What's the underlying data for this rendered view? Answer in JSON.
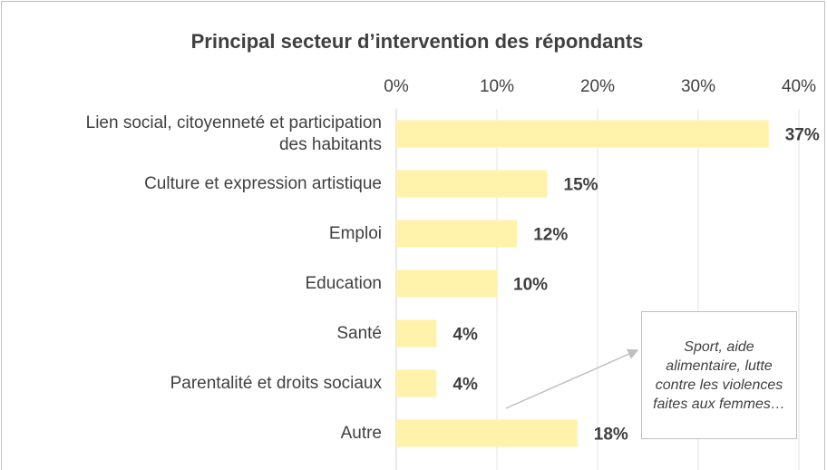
{
  "chart_data": {
    "type": "bar",
    "orientation": "horizontal",
    "title": "Principal secteur d’intervention des répondants",
    "categories": [
      "Lien social, citoyenneté et participation des habitants",
      "Culture et expression artistique",
      "Emploi",
      "Education",
      "Santé",
      "Parentalité et droits sociaux",
      "Autre"
    ],
    "values": [
      37,
      15,
      12,
      10,
      4,
      4,
      18
    ],
    "value_labels": [
      "37%",
      "15%",
      "12%",
      "10%",
      "4%",
      "4%",
      "18%"
    ],
    "color": "#fff2aa",
    "xlim": [
      0,
      40
    ],
    "xticks": [
      {
        "value": 0,
        "label": "0%"
      },
      {
        "value": 10,
        "label": "10%"
      },
      {
        "value": 20,
        "label": "20%"
      },
      {
        "value": 30,
        "label": "30%"
      },
      {
        "value": 40,
        "label": "40%"
      }
    ],
    "grid": true,
    "annotation": "Sport, aide alimentaire, lutte contre les violences faites aux femmes…"
  }
}
